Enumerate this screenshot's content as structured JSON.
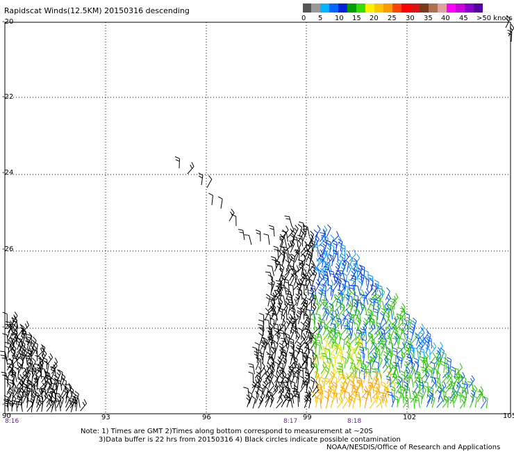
{
  "title": "Rapidscat Winds(12.5KM) 20150316 descending",
  "legend": {
    "colors": [
      "#595959",
      "#9a9a9a",
      "#00a6ff",
      "#0036ff",
      "#00b400",
      "#00ff00",
      "#ffd800",
      "#ffaa00",
      "#ff0000",
      "#cc2200",
      "#7a3f1d",
      "#a46a4a",
      "#ff00ff",
      "#b000c8",
      "#5c00a0"
    ],
    "labels": [
      "0",
      "5",
      "10",
      "15",
      "20",
      "25",
      "30",
      "35",
      "40",
      "45",
      ">50 knots"
    ]
  },
  "y_axis": [
    "-20",
    "-22",
    "-24",
    "-26",
    "-28",
    "-30"
  ],
  "x_axis": [
    "90",
    "93",
    "96",
    "99",
    "102",
    "105"
  ],
  "times": [
    "8:16",
    "8:17",
    "8:18"
  ],
  "notes": {
    "line1": "Note: 1) Times are GMT 2)Times along bottom correspond to measurement at ~20S",
    "line2": "3)Data buffer is 22 hrs from 20150316 4) Black circles indicate possible contamination",
    "credit": "NOAA/NESDIS/Office of Research and Applications"
  }
}
